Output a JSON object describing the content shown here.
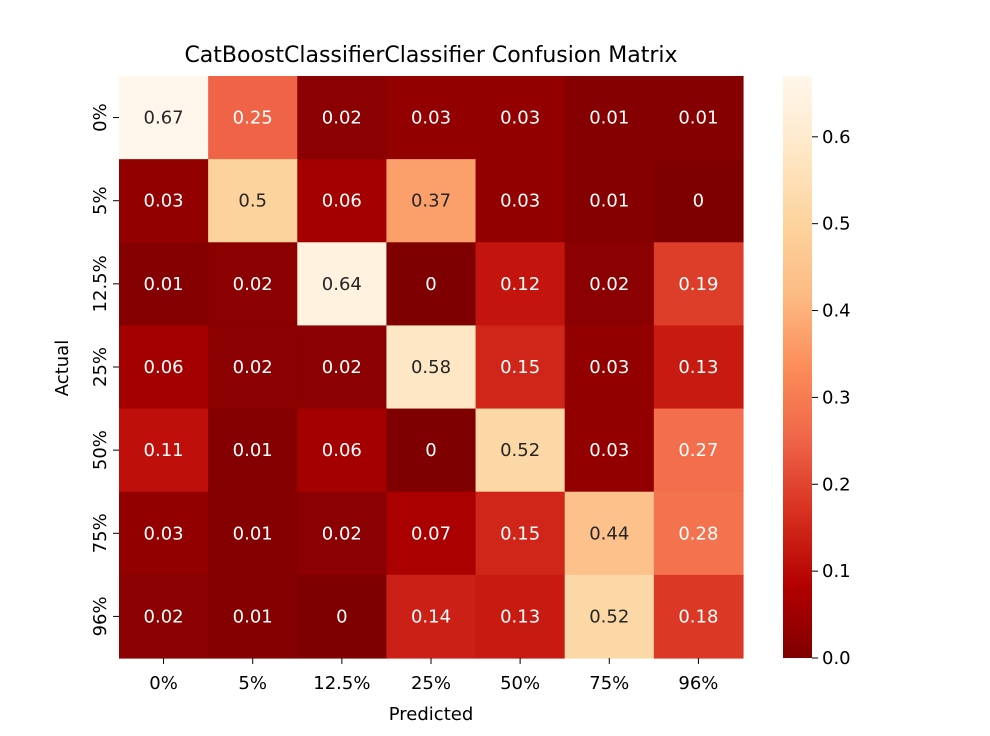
{
  "chart_data": {
    "type": "heatmap",
    "title": "CatBoostClassifierClassifier Confusion Matrix",
    "xlabel": "Predicted",
    "ylabel": "Actual",
    "x_categories": [
      "0%",
      "5%",
      "12.5%",
      "25%",
      "50%",
      "75%",
      "96%"
    ],
    "y_categories": [
      "0%",
      "5%",
      "12.5%",
      "25%",
      "50%",
      "75%",
      "96%"
    ],
    "values": [
      [
        "0.67",
        "0.25",
        "0.02",
        "0.03",
        "0.03",
        "0.01",
        "0.01"
      ],
      [
        "0.03",
        "0.5",
        "0.06",
        "0.37",
        "0.03",
        "0.01",
        "0"
      ],
      [
        "0.01",
        "0.02",
        "0.64",
        "0",
        "0.12",
        "0.02",
        "0.19"
      ],
      [
        "0.06",
        "0.02",
        "0.02",
        "0.58",
        "0.15",
        "0.03",
        "0.13"
      ],
      [
        "0.11",
        "0.01",
        "0.06",
        "0",
        "0.52",
        "0.03",
        "0.27"
      ],
      [
        "0.03",
        "0.01",
        "0.02",
        "0.07",
        "0.15",
        "0.44",
        "0.28"
      ],
      [
        "0.02",
        "0.01",
        "0",
        "0.14",
        "0.13",
        "0.52",
        "0.18"
      ]
    ],
    "colorbar": {
      "min": 0.0,
      "max": 0.67,
      "ticks": [
        "0.0",
        "0.1",
        "0.2",
        "0.3",
        "0.4",
        "0.5",
        "0.6"
      ],
      "colormap": "OrRd_r"
    }
  }
}
